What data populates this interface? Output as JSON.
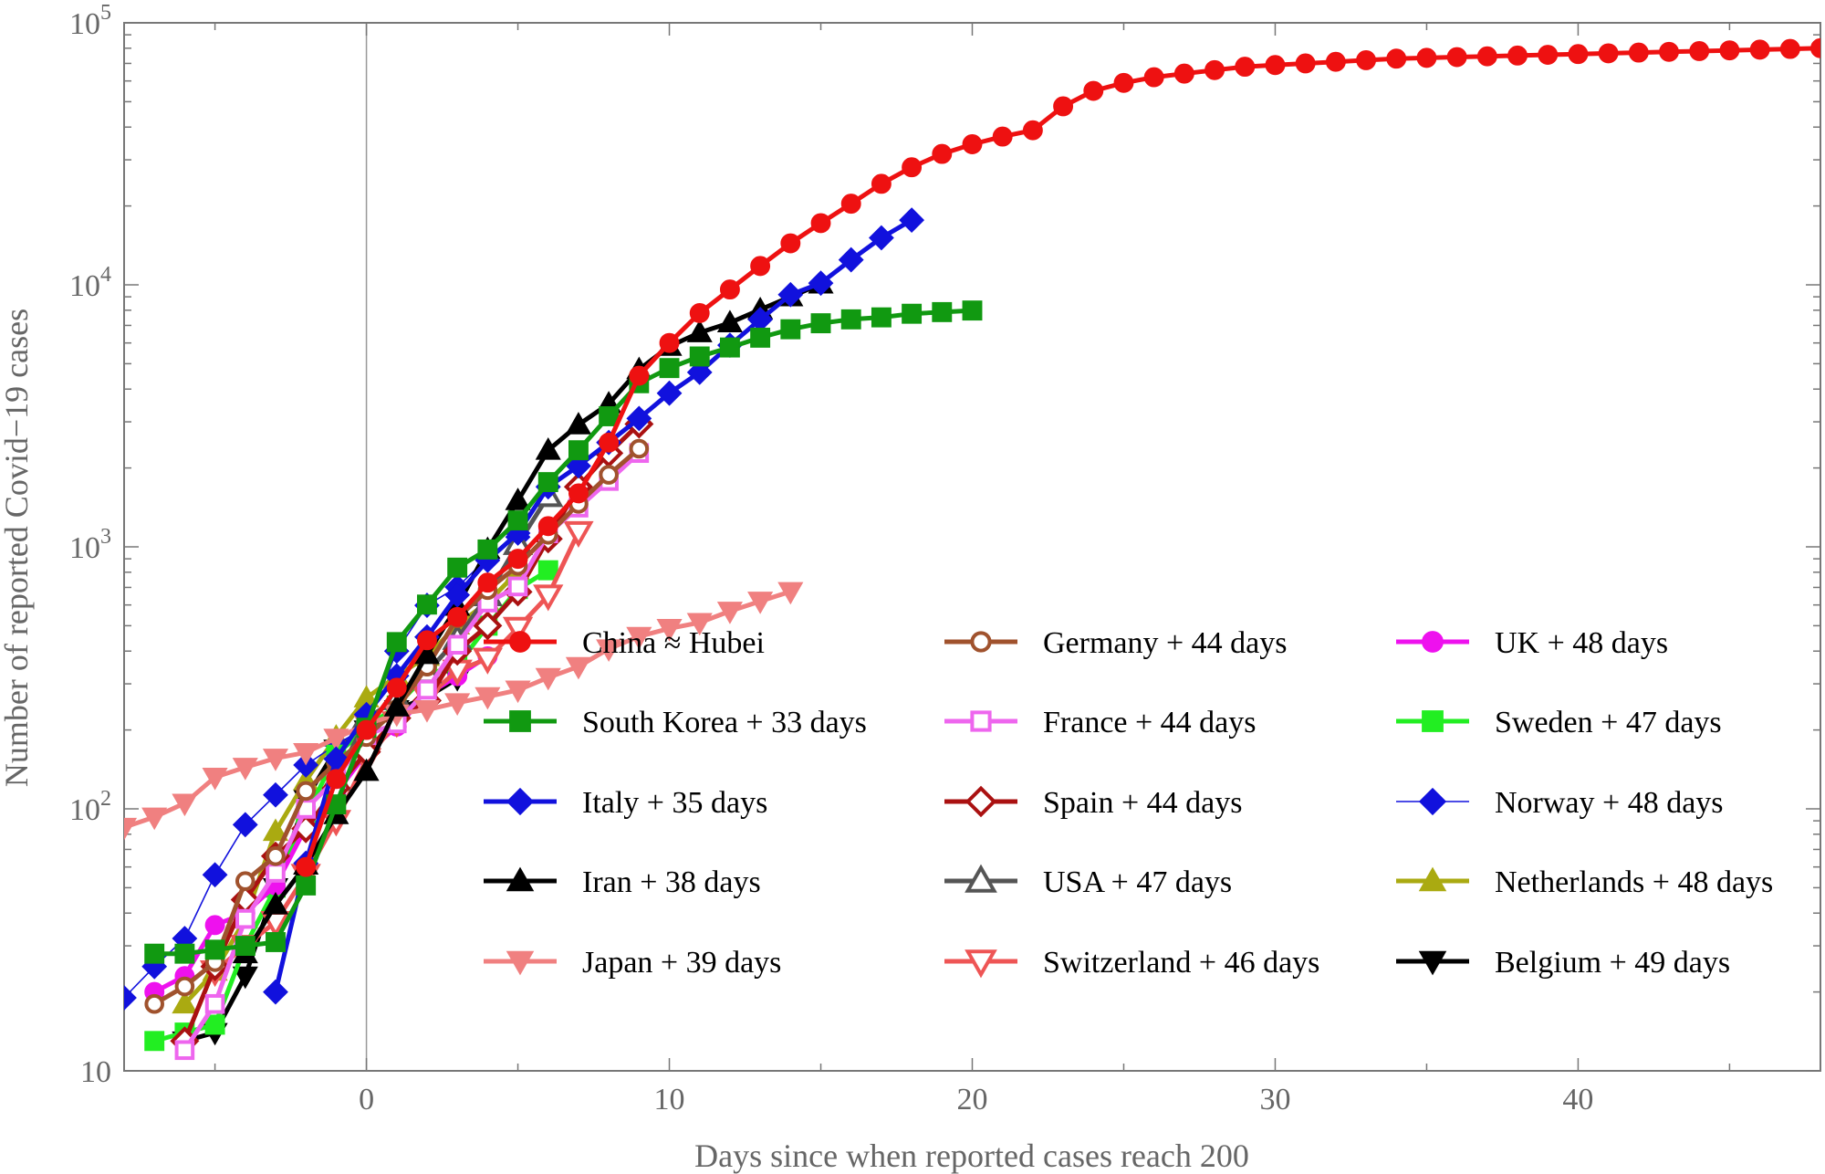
{
  "chart_data": {
    "type": "line",
    "xlabel": "Days since when reported cases reach 200",
    "ylabel": "Number of reported Covid−19 cases",
    "xlim": [
      -8,
      48
    ],
    "ylim": [
      10,
      100000
    ],
    "yscale": "log",
    "x_ticks": [
      {
        "value": 0,
        "label": "0"
      },
      {
        "value": 10,
        "label": "10"
      },
      {
        "value": 20,
        "label": "20"
      },
      {
        "value": 30,
        "label": "30"
      },
      {
        "value": 40,
        "label": "40"
      }
    ],
    "y_ticks": [
      {
        "value": 10,
        "base": "10",
        "exp": ""
      },
      {
        "value": 100,
        "base": "10",
        "exp": "2"
      },
      {
        "value": 1000,
        "base": "10",
        "exp": "3"
      },
      {
        "value": 10000,
        "base": "10",
        "exp": "4"
      },
      {
        "value": 100000,
        "base": "10",
        "exp": "5"
      }
    ],
    "reference_line_x": 0,
    "legend_position": "lower-right",
    "series": [
      {
        "name": "China ≈ Hubei",
        "color": "#ee1111",
        "marker": "circle",
        "filled": true,
        "lineWidth": 5,
        "x": [
          -2,
          -1,
          0,
          1,
          2,
          3,
          4,
          5,
          6,
          7,
          8,
          9,
          10,
          11,
          12,
          13,
          14,
          15,
          16,
          17,
          18,
          19,
          20,
          21,
          22,
          23,
          24,
          25,
          26,
          27,
          28,
          29,
          30,
          31,
          32,
          33,
          34,
          35,
          36,
          37,
          38,
          39,
          40,
          41,
          42,
          43,
          44,
          45,
          46,
          47,
          48
        ],
        "y": [
          60,
          130,
          200,
          290,
          440,
          540,
          730,
          900,
          1200,
          1600,
          2500,
          4500,
          6000,
          7800,
          9600,
          11800,
          14400,
          17200,
          20400,
          24300,
          28100,
          31600,
          34400,
          36800,
          38900,
          48000,
          55000,
          59000,
          62000,
          64000,
          66000,
          68000,
          69000,
          70000,
          71000,
          72000,
          73000,
          73500,
          74000,
          74500,
          75000,
          75500,
          76000,
          76500,
          77000,
          77500,
          78000,
          78500,
          79000,
          79500,
          80000
        ]
      },
      {
        "name": "South Korea + 33 days",
        "color": "#119911",
        "marker": "square",
        "filled": true,
        "lineWidth": 5,
        "x": [
          -7,
          -6,
          -5,
          -4,
          -3,
          -2,
          -1,
          0,
          1,
          2,
          3,
          4,
          5,
          6,
          7,
          8,
          9,
          10,
          11,
          12,
          13,
          14,
          15,
          16,
          17,
          18,
          19,
          20
        ],
        "y": [
          28,
          28,
          29,
          30,
          31,
          51,
          104,
          204,
          433,
          602,
          833,
          977,
          1261,
          1766,
          2337,
          3150,
          4212,
          4812,
          5328,
          5766,
          6284,
          6767,
          7134,
          7382,
          7513,
          7755,
          7869,
          7979
        ]
      },
      {
        "name": "Italy + 35 days",
        "color": "#1111dd",
        "marker": "diamond",
        "filled": true,
        "lineWidth": 5,
        "x": [
          -3,
          -2,
          -1,
          0,
          1,
          2,
          3,
          4,
          5,
          6,
          7,
          8,
          9,
          10,
          11,
          12,
          13,
          14,
          15,
          16,
          17,
          18
        ],
        "y": [
          20,
          62,
          155,
          229,
          322,
          453,
          655,
          888,
          1128,
          1694,
          2036,
          2502,
          3089,
          3858,
          4636,
          5883,
          7375,
          9172,
          10149,
          12462,
          15113,
          17660
        ]
      },
      {
        "name": "Iran + 38 days",
        "color": "#000000",
        "marker": "triangle-up",
        "filled": true,
        "lineWidth": 5,
        "x": [
          -4,
          -3,
          -2,
          -1,
          0,
          1,
          2,
          3,
          4,
          5,
          6,
          7,
          8,
          9,
          10,
          11,
          12,
          13,
          14,
          15
        ],
        "y": [
          28,
          43,
          61,
          95,
          139,
          245,
          388,
          593,
          978,
          1501,
          2336,
          2922,
          3513,
          4747,
          5823,
          6566,
          7161,
          8042,
          9000,
          10075
        ]
      },
      {
        "name": "Japan + 39 days",
        "color": "#f08080",
        "marker": "triangle-down",
        "filled": true,
        "lineWidth": 5,
        "x": [
          -8,
          -7,
          -6,
          -5,
          -4,
          -3,
          -2,
          -1,
          0,
          1,
          2,
          3,
          4,
          5,
          6,
          7,
          8,
          9,
          10,
          11,
          12,
          13,
          14
        ],
        "y": [
          85,
          93,
          105,
          132,
          144,
          156,
          164,
          186,
          210,
          230,
          239,
          254,
          268,
          284,
          317,
          349,
          408,
          455,
          488,
          514,
          568,
          620,
          675
        ]
      },
      {
        "name": "Germany + 44 days",
        "color": "#a0522d",
        "marker": "circle",
        "filled": false,
        "lineWidth": 5,
        "x": [
          -7,
          -6,
          -5,
          -4,
          -3,
          -2,
          -1,
          0,
          1,
          2,
          3,
          4,
          5,
          6,
          7,
          8,
          9
        ],
        "y": [
          18,
          21,
          26,
          53,
          66,
          117,
          150,
          188,
          240,
          349,
          534,
          684,
          847,
          1112,
          1460,
          1884,
          2369
        ]
      },
      {
        "name": "France + 44 days",
        "color": "#ee66ee",
        "marker": "square",
        "filled": false,
        "lineWidth": 5,
        "x": [
          -6,
          -5,
          -4,
          -3,
          -2,
          -1,
          0,
          1,
          2,
          3,
          4,
          5,
          6,
          7,
          8,
          9
        ],
        "y": [
          12,
          18,
          38,
          57,
          100,
          130,
          191,
          212,
          285,
          423,
          613,
          706,
          1126,
          1412,
          1784,
          2281
        ]
      },
      {
        "name": "Spain + 44 days",
        "color": "#aa1111",
        "marker": "diamond",
        "filled": false,
        "lineWidth": 5,
        "x": [
          -6,
          -5,
          -4,
          -3,
          -2,
          -1,
          0,
          1,
          2,
          3,
          4,
          5,
          6,
          7,
          8,
          9
        ],
        "y": [
          13,
          25,
          45,
          66,
          84,
          120,
          165,
          222,
          259,
          400,
          500,
          673,
          1073,
          1695,
          2277,
          2943
        ]
      },
      {
        "name": "USA + 47 days",
        "color": "#555555",
        "marker": "triangle-up",
        "filled": false,
        "lineWidth": 5,
        "x": [
          -1,
          0,
          1,
          2,
          3,
          4,
          5,
          6
        ],
        "y": [
          129,
          221,
          262,
          332,
          445,
          653,
          1025,
          1562
        ]
      },
      {
        "name": "Switzerland + 46 days",
        "color": "#ee5555",
        "marker": "triangle-down",
        "filled": false,
        "lineWidth": 5,
        "x": [
          -5,
          -4,
          -3,
          -2,
          -1,
          0,
          1,
          2,
          3,
          4,
          5,
          6,
          7
        ],
        "y": [
          24,
          30,
          37,
          56,
          90,
          155,
          214,
          268,
          337,
          374,
          491,
          652,
          1139
        ]
      },
      {
        "name": "UK + 48 days",
        "color": "#ee11ee",
        "marker": "circle",
        "filled": true,
        "lineWidth": 5,
        "x": [
          -7,
          -6,
          -5,
          -4,
          -3,
          -2,
          -1,
          0,
          1,
          2,
          3,
          4
        ],
        "y": [
          20,
          23,
          36,
          40,
          51,
          85,
          115,
          163,
          206,
          273,
          321,
          382
        ]
      },
      {
        "name": "Sweden + 47 days",
        "color": "#22ee22",
        "marker": "square",
        "filled": true,
        "lineWidth": 5,
        "x": [
          -7,
          -6,
          -5,
          -4,
          -3,
          -2,
          -1,
          0,
          1,
          2,
          3,
          4,
          5,
          6
        ],
        "y": [
          13,
          14,
          15,
          30,
          50,
          94,
          161,
          203,
          248,
          326,
          352,
          500,
          690,
          814
        ]
      },
      {
        "name": "Norway + 48 days",
        "color": "#1111dd",
        "marker": "diamond",
        "filled": true,
        "lineWidth": 1.6,
        "x": [
          -8,
          -7,
          -6,
          -5,
          -4,
          -3,
          -2,
          -1,
          0,
          1,
          2,
          3,
          4,
          5
        ],
        "y": [
          19,
          25,
          32,
          56,
          87,
          113,
          147,
          176,
          205,
          400,
          598,
          702,
          907,
          1090
        ]
      },
      {
        "name": "Netherlands + 48 days",
        "color": "#aaaa11",
        "marker": "triangle-up",
        "filled": true,
        "lineWidth": 5,
        "x": [
          -6,
          -5,
          -4,
          -3,
          -2,
          -1,
          0,
          1,
          2,
          3,
          4,
          5
        ],
        "y": [
          18,
          24,
          38,
          82,
          128,
          188,
          265,
          321,
          382,
          503,
          614,
          804
        ]
      },
      {
        "name": "Belgium + 49 days",
        "color": "#000000",
        "marker": "triangle-down",
        "filled": true,
        "lineWidth": 5,
        "x": [
          -6,
          -5,
          -4,
          -3,
          -2,
          -1,
          0,
          1,
          2,
          3
        ],
        "y": [
          13,
          14,
          23,
          50,
          109,
          169,
          200,
          239,
          267,
          314
        ]
      }
    ]
  }
}
